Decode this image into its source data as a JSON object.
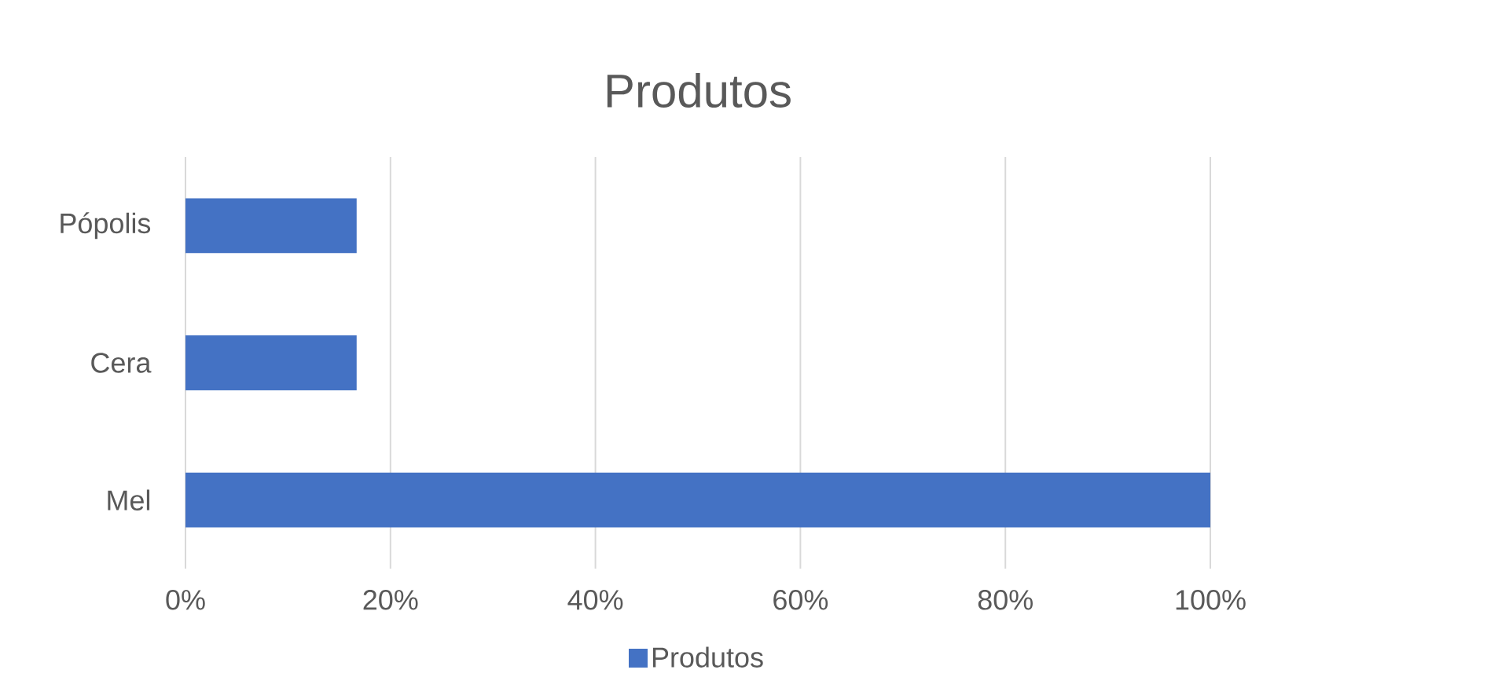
{
  "chart_data": {
    "type": "bar",
    "orientation": "horizontal",
    "title": "Produtos",
    "categories": [
      "Pópolis",
      "Cera",
      "Mel"
    ],
    "series": [
      {
        "name": "Produtos",
        "color": "#4472c4",
        "values": [
          16.7,
          16.7,
          100
        ]
      }
    ],
    "xlim": [
      0,
      100
    ],
    "xticks": [
      {
        "value": 0,
        "label": "0%"
      },
      {
        "value": 20,
        "label": "20%"
      },
      {
        "value": 40,
        "label": "40%"
      },
      {
        "value": 60,
        "label": "60%"
      },
      {
        "value": 80,
        "label": "80%"
      },
      {
        "value": 100,
        "label": "100%"
      }
    ],
    "grid": "x",
    "legend": "bottom"
  }
}
